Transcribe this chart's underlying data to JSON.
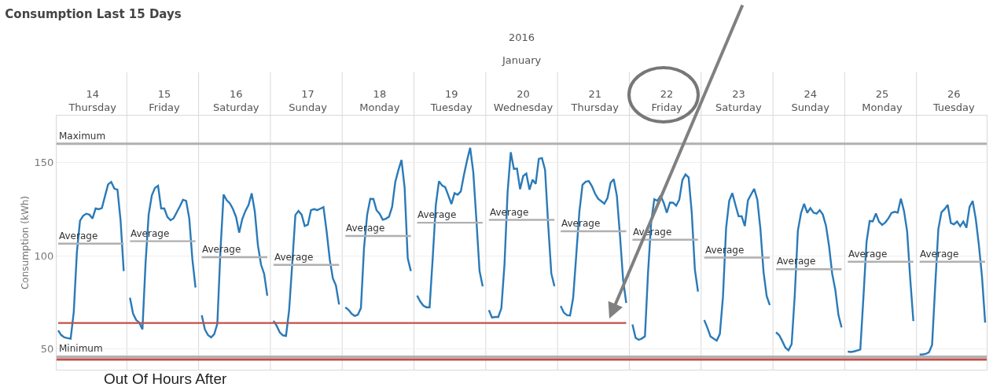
{
  "chart_data": {
    "type": "line",
    "title": "Consumption Last 15 Days",
    "ylabel": "Consumption (kWh)",
    "annotations": [
      "2016",
      "January",
      "Out Of Hours After",
      {
        "text": "Average",
        "y": 106.5
      },
      {
        "text": "Average",
        "y": 107.8
      },
      {
        "text": "Average",
        "y": 99.2
      },
      {
        "text": "Average",
        "y": 95.1
      },
      {
        "text": "Average",
        "y": 110.6
      },
      {
        "text": "Average",
        "y": 117.7
      },
      {
        "text": "Average",
        "y": 119.2
      },
      {
        "text": "Average",
        "y": 113.1
      },
      {
        "text": "Average",
        "y": 108.6
      },
      {
        "text": "Average",
        "y": 99
      },
      {
        "text": "Average",
        "y": 92.8
      },
      {
        "text": "Average",
        "y": 96.8
      },
      {
        "text": "Average",
        "y": 96.8
      }
    ],
    "categories": [
      null,
      null,
      null,
      null,
      null,
      null,
      null,
      null,
      null,
      null,
      null,
      "14\nThursday",
      null,
      null,
      null,
      null,
      null,
      null,
      null,
      null,
      null,
      null,
      null,
      null,
      null,
      null,
      null,
      null,
      null,
      null,
      null,
      null,
      null,
      null,
      "15\nFriday",
      null,
      null,
      null,
      null,
      null,
      null,
      null,
      null,
      null,
      null,
      null,
      null,
      null,
      null,
      null,
      null,
      null,
      null,
      null,
      null,
      null,
      null,
      "16\nSaturday",
      null,
      null,
      null,
      null,
      null,
      null,
      null,
      null,
      null,
      null,
      null,
      null,
      null,
      null,
      null,
      null,
      null,
      null,
      null,
      null,
      null,
      null,
      "17\nSunday",
      null,
      null,
      null,
      null,
      null,
      null,
      null,
      null,
      null,
      null,
      null,
      null,
      null,
      null,
      null,
      null,
      null,
      null,
      null,
      null,
      null,
      null,
      "18\nMonday",
      null,
      null,
      null,
      null,
      null,
      null,
      null,
      null,
      null,
      null,
      null,
      null,
      null,
      null,
      null,
      null,
      null,
      null,
      null,
      null,
      null,
      null,
      "19\nTuesday",
      null,
      null,
      null,
      null,
      null,
      null,
      null,
      null,
      null,
      null,
      null,
      null,
      null,
      null,
      null,
      null,
      null,
      null,
      null,
      null,
      null,
      null,
      "20\nWednesday",
      null,
      null,
      null,
      null,
      null,
      null,
      null,
      null,
      null,
      null,
      null,
      null,
      null,
      null,
      null,
      null,
      null,
      null,
      null,
      null,
      null,
      null,
      "21\nThursday",
      null,
      null,
      null,
      null,
      null,
      null,
      null,
      null,
      null,
      null,
      null,
      null,
      null,
      null,
      null,
      null,
      null,
      null,
      null,
      null,
      null,
      null,
      "22\nFriday",
      null,
      null,
      null,
      null,
      null,
      null,
      null,
      null,
      null,
      null,
      null,
      null,
      null,
      null,
      null,
      null,
      null,
      null,
      null,
      null,
      null,
      null,
      "23\nSaturday",
      null,
      null,
      null,
      null,
      null,
      null,
      null,
      null,
      null,
      null,
      null,
      null,
      null,
      null,
      null,
      null,
      null,
      null,
      null,
      null,
      null,
      null,
      "24\nSunday",
      null,
      null,
      null,
      null,
      null,
      null,
      null,
      null,
      null,
      null,
      null,
      null,
      null,
      null,
      null,
      null,
      null,
      null,
      null,
      null,
      null,
      null,
      "25\nMonday",
      null,
      null,
      null,
      null,
      null,
      null,
      null,
      null,
      null,
      null,
      null,
      null,
      null,
      null,
      null,
      null,
      null,
      null,
      null,
      null,
      null,
      null,
      "26\nTuesday",
      null,
      null,
      null,
      null,
      null,
      null,
      null,
      null,
      null,
      null
    ],
    "ylim": [
      39,
      175
    ],
    "yticks": [
      50,
      100,
      150
    ],
    "grid": "y",
    "series": [
      {
        "color": "#2a7ab8",
        "values": [
          60.0,
          57.5,
          56.3,
          55.9,
          55.6,
          69.9,
          101.9,
          118.7,
          121.4,
          122.5,
          122,
          119.9,
          125.3,
          124.9,
          125.5,
          131.9,
          138.2,
          139.5,
          135.9,
          135.4,
          118.8,
          91.8,
          null,
          77.5,
          69,
          65.6,
          64.2,
          60.6,
          96.1,
          122.1,
          132.2,
          136.3,
          137.5,
          125.3,
          125.3,
          120.7,
          119,
          120.1,
          123.3,
          126.5,
          130,
          129.4,
          120,
          98.1,
          83,
          null,
          68.2,
          60.6,
          57.5,
          56.3,
          58,
          63.6,
          102.9,
          132.8,
          129.7,
          128.1,
          125,
          120.7,
          112.4,
          119.7,
          124,
          127.2,
          133.4,
          123.7,
          105.6,
          95.2,
          90.3,
          78.6,
          null,
          65.2,
          62.5,
          59,
          57.4,
          57.1,
          70.9,
          95.8,
          121.8,
          124,
          122,
          115.9,
          116.6,
          124.4,
          125,
          124.4,
          125.2,
          126,
          113.2,
          98.2,
          88,
          84,
          73.9,
          null,
          72.4,
          71.1,
          69,
          67.8,
          68.4,
          72,
          104.3,
          121.9,
          130.5,
          130.4,
          124.4,
          122.5,
          119.3,
          119.8,
          120.9,
          126.2,
          139.4,
          145.8,
          151.3,
          136.5,
          98.7,
          91.8,
          null,
          78.7,
          75.5,
          73.3,
          72.4,
          72.4,
          98.7,
          127.2,
          139.9,
          137.6,
          136.7,
          132.3,
          127.7,
          133.5,
          132.7,
          134.4,
          143.2,
          151,
          157.8,
          144.7,
          119.1,
          91.9,
          83.6,
          null,
          70.9,
          66.9,
          67.2,
          67.2,
          71.9,
          95.5,
          134.2,
          155.4,
          146.5,
          146.7,
          135.6,
          142.7,
          144,
          135.4,
          140.7,
          138.5,
          151.9,
          152.3,
          146,
          116.6,
          90.5,
          83.7,
          null,
          73.1,
          69.6,
          68.2,
          68,
          77.4,
          100.5,
          123.7,
          138,
          139.6,
          140,
          137.3,
          133.3,
          130.5,
          129.2,
          127.9,
          130.9,
          139.1,
          141,
          132.1,
          110.8,
          87.3,
          74.7,
          null,
          63.2,
          56.1,
          55,
          55.7,
          56.9,
          91.2,
          118.1,
          130.2,
          129.4,
          132.2,
          128.4,
          123,
          128.5,
          128.4,
          126.8,
          130,
          140.5,
          143.5,
          141.9,
          123,
          92.6,
          80.8,
          null,
          65.6,
          61.5,
          56.8,
          55.6,
          54.6,
          58.1,
          78,
          114.8,
          129.4,
          133.5,
          127.2,
          121.2,
          121.1,
          115.9,
          129.7,
          132.8,
          135.8,
          130.1,
          114.2,
          91.3,
          78.4,
          73.6,
          null,
          59,
          57.5,
          54.3,
          50.8,
          49.4,
          52.7,
          78.9,
          113.5,
          122.8,
          127.8,
          123,
          125.5,
          123.1,
          122.5,
          124.4,
          122,
          116.1,
          105,
          90.3,
          81.7,
          68.2,
          61.6,
          null,
          48.7,
          48.5,
          48.8,
          49.3,
          49.8,
          77.7,
          107.4,
          118.6,
          118.4,
          122.6,
          118.2,
          116.5,
          117.8,
          120,
          122.9,
          123.5,
          123.1,
          130.6,
          124,
          113.1,
          87.6,
          65,
          null,
          47.1,
          47.2,
          47.5,
          48.3,
          52.3,
          83.9,
          114.2,
          123.3,
          124.9,
          127.2,
          117.6,
          116.8,
          118.3,
          115.8,
          118.3,
          115,
          126.1,
          129.3,
          119.6,
          105.6,
          88.5,
          64.2
        ]
      },
      {
        "color": "#b0b0b0",
        "values": [
          106.5,
          106.5,
          106.5,
          106.5,
          106.5,
          106.5,
          106.5,
          106.5,
          106.5,
          106.5,
          106.5,
          106.5,
          106.5,
          106.5,
          106.5,
          106.5,
          106.5,
          106.5,
          106.5,
          106.5,
          106.5,
          106.5,
          null,
          107.8,
          107.8,
          107.8,
          107.8,
          107.8,
          107.8,
          107.8,
          107.8,
          107.8,
          107.8,
          107.8,
          107.8,
          107.8,
          107.8,
          107.8,
          107.8,
          107.8,
          107.8,
          107.8,
          107.8,
          107.8,
          107.8,
          null,
          99.2,
          99.2,
          99.2,
          99.2,
          99.2,
          99.2,
          99.2,
          99.2,
          99.2,
          99.2,
          99.2,
          99.2,
          99.2,
          99.2,
          99.2,
          99.2,
          99.2,
          99.2,
          99.2,
          99.2,
          99.2,
          99.2,
          null,
          95.1,
          95.1,
          95.1,
          95.1,
          95.1,
          95.1,
          95.1,
          95.1,
          95.1,
          95.1,
          95.1,
          95.1,
          95.1,
          95.1,
          95.1,
          95.1,
          95.1,
          95.1,
          95.1,
          95.1,
          95.1,
          95.1,
          null,
          110.6,
          110.6,
          110.6,
          110.6,
          110.6,
          110.6,
          110.6,
          110.6,
          110.6,
          110.6,
          110.6,
          110.6,
          110.6,
          110.6,
          110.6,
          110.6,
          110.6,
          110.6,
          110.6,
          110.6,
          110.6,
          110.6,
          null,
          117.7,
          117.7,
          117.7,
          117.7,
          117.7,
          117.7,
          117.7,
          117.7,
          117.7,
          117.7,
          117.7,
          117.7,
          117.7,
          117.7,
          117.7,
          117.7,
          117.7,
          117.7,
          117.7,
          117.7,
          117.7,
          117.7,
          null,
          119.2,
          119.2,
          119.2,
          119.2,
          119.2,
          119.2,
          119.2,
          119.2,
          119.2,
          119.2,
          119.2,
          119.2,
          119.2,
          119.2,
          119.2,
          119.2,
          119.2,
          119.2,
          119.2,
          119.2,
          119.2,
          119.2,
          null,
          113.1,
          113.1,
          113.1,
          113.1,
          113.1,
          113.1,
          113.1,
          113.1,
          113.1,
          113.1,
          113.1,
          113.1,
          113.1,
          113.1,
          113.1,
          113.1,
          113.1,
          113.1,
          113.1,
          113.1,
          113.1,
          113.1,
          null,
          108.6,
          108.6,
          108.6,
          108.6,
          108.6,
          108.6,
          108.6,
          108.6,
          108.6,
          108.6,
          108.6,
          108.6,
          108.6,
          108.6,
          108.6,
          108.6,
          108.6,
          108.6,
          108.6,
          108.6,
          108.6,
          108.6,
          null,
          99,
          99,
          99,
          99,
          99,
          99,
          99,
          99,
          99,
          99,
          99,
          99,
          99,
          99,
          99,
          99,
          99,
          99,
          99,
          99,
          99,
          99,
          null,
          92.8,
          92.8,
          92.8,
          92.8,
          92.8,
          92.8,
          92.8,
          92.8,
          92.8,
          92.8,
          92.8,
          92.8,
          92.8,
          92.8,
          92.8,
          92.8,
          92.8,
          92.8,
          92.8,
          92.8,
          92.8,
          92.8,
          null,
          96.8,
          96.8,
          96.8,
          96.8,
          96.8,
          96.8,
          96.8,
          96.8,
          96.8,
          96.8,
          96.8,
          96.8,
          96.8,
          96.8,
          96.8,
          96.8,
          96.8,
          96.8,
          96.8,
          96.8,
          96.8,
          96.8,
          null,
          96.8,
          96.8,
          96.8,
          96.8,
          96.8,
          96.8,
          96.8,
          96.8,
          96.8,
          96.8,
          96.8,
          96.8,
          96.8,
          96.8,
          96.8,
          96.8,
          96.8,
          96.8,
          96.8,
          96.8,
          96.8,
          96.8
        ]
      },
      {
        "color": "#c0504d",
        "values": [
          64,
          64,
          64,
          64,
          64,
          64,
          64,
          64,
          64,
          64,
          64,
          64,
          64,
          64,
          64,
          64,
          64,
          64,
          64,
          64,
          64,
          64,
          64,
          64,
          64,
          64,
          64,
          64,
          64,
          64,
          64,
          64,
          64,
          64,
          64,
          64,
          64,
          64,
          64,
          64,
          64,
          64,
          64,
          64,
          64,
          64,
          64,
          64,
          64,
          64,
          64,
          64,
          64,
          64,
          64,
          64,
          64,
          64,
          64,
          64,
          64,
          64,
          64,
          64,
          64,
          64,
          64,
          64,
          64,
          64,
          64,
          64,
          64,
          64,
          64,
          64,
          64,
          64,
          64,
          64,
          64,
          64,
          64,
          64,
          64,
          64,
          64,
          64,
          64,
          64,
          64,
          64,
          64,
          64,
          64,
          64,
          64,
          64,
          64,
          64,
          64,
          64,
          64,
          64,
          64,
          64,
          64,
          64,
          64,
          64,
          64,
          64,
          64,
          64,
          64,
          64,
          64,
          64,
          64,
          64,
          64,
          64,
          64,
          64,
          64,
          64,
          64,
          64,
          64,
          64,
          64,
          64,
          64,
          64,
          64,
          64,
          64,
          64,
          64,
          64,
          64,
          64,
          64,
          64,
          64,
          64,
          64,
          64,
          64,
          64,
          64,
          64,
          64,
          64,
          64,
          64,
          64,
          64,
          64,
          64,
          64,
          64,
          64,
          64,
          64,
          64,
          64,
          64,
          64,
          64,
          64,
          64,
          64,
          64,
          64,
          64,
          64,
          64,
          64,
          64,
          64,
          64,
          64,
          null,
          null,
          null,
          null,
          null,
          null,
          null,
          null,
          null,
          null,
          null,
          null,
          null,
          null,
          null,
          null,
          null,
          null,
          null,
          null,
          null,
          null,
          null,
          null,
          null,
          null,
          null,
          null,
          null,
          null,
          null,
          null,
          null,
          null,
          null,
          null,
          null,
          null,
          null,
          null,
          null,
          null,
          null,
          null,
          null,
          null,
          null,
          null,
          null,
          null,
          null,
          null,
          null,
          null,
          null,
          null,
          null,
          null,
          null,
          null,
          null,
          null,
          null,
          null,
          null,
          null,
          null,
          null,
          null,
          null,
          null,
          null,
          null,
          null,
          null,
          null,
          null,
          null,
          null,
          null,
          null,
          null,
          null,
          null,
          null,
          null,
          null,
          null,
          null,
          null,
          null,
          null,
          null,
          null,
          null,
          null,
          null,
          null,
          null,
          null,
          null,
          null,
          null,
          null,
          null,
          null,
          null,
          null,
          null,
          null,
          null,
          null,
          null,
          null,
          null
        ]
      }
    ],
    "ref_lines": [
      {
        "axis": "y",
        "value": 160,
        "label": "Maximum",
        "color": "#b0b0b0"
      },
      {
        "axis": "y",
        "value": 46,
        "label": "Minimum",
        "color": "#b0b0b0"
      },
      {
        "axis": "y",
        "value": 44.5,
        "color": "#c0504d"
      }
    ]
  }
}
